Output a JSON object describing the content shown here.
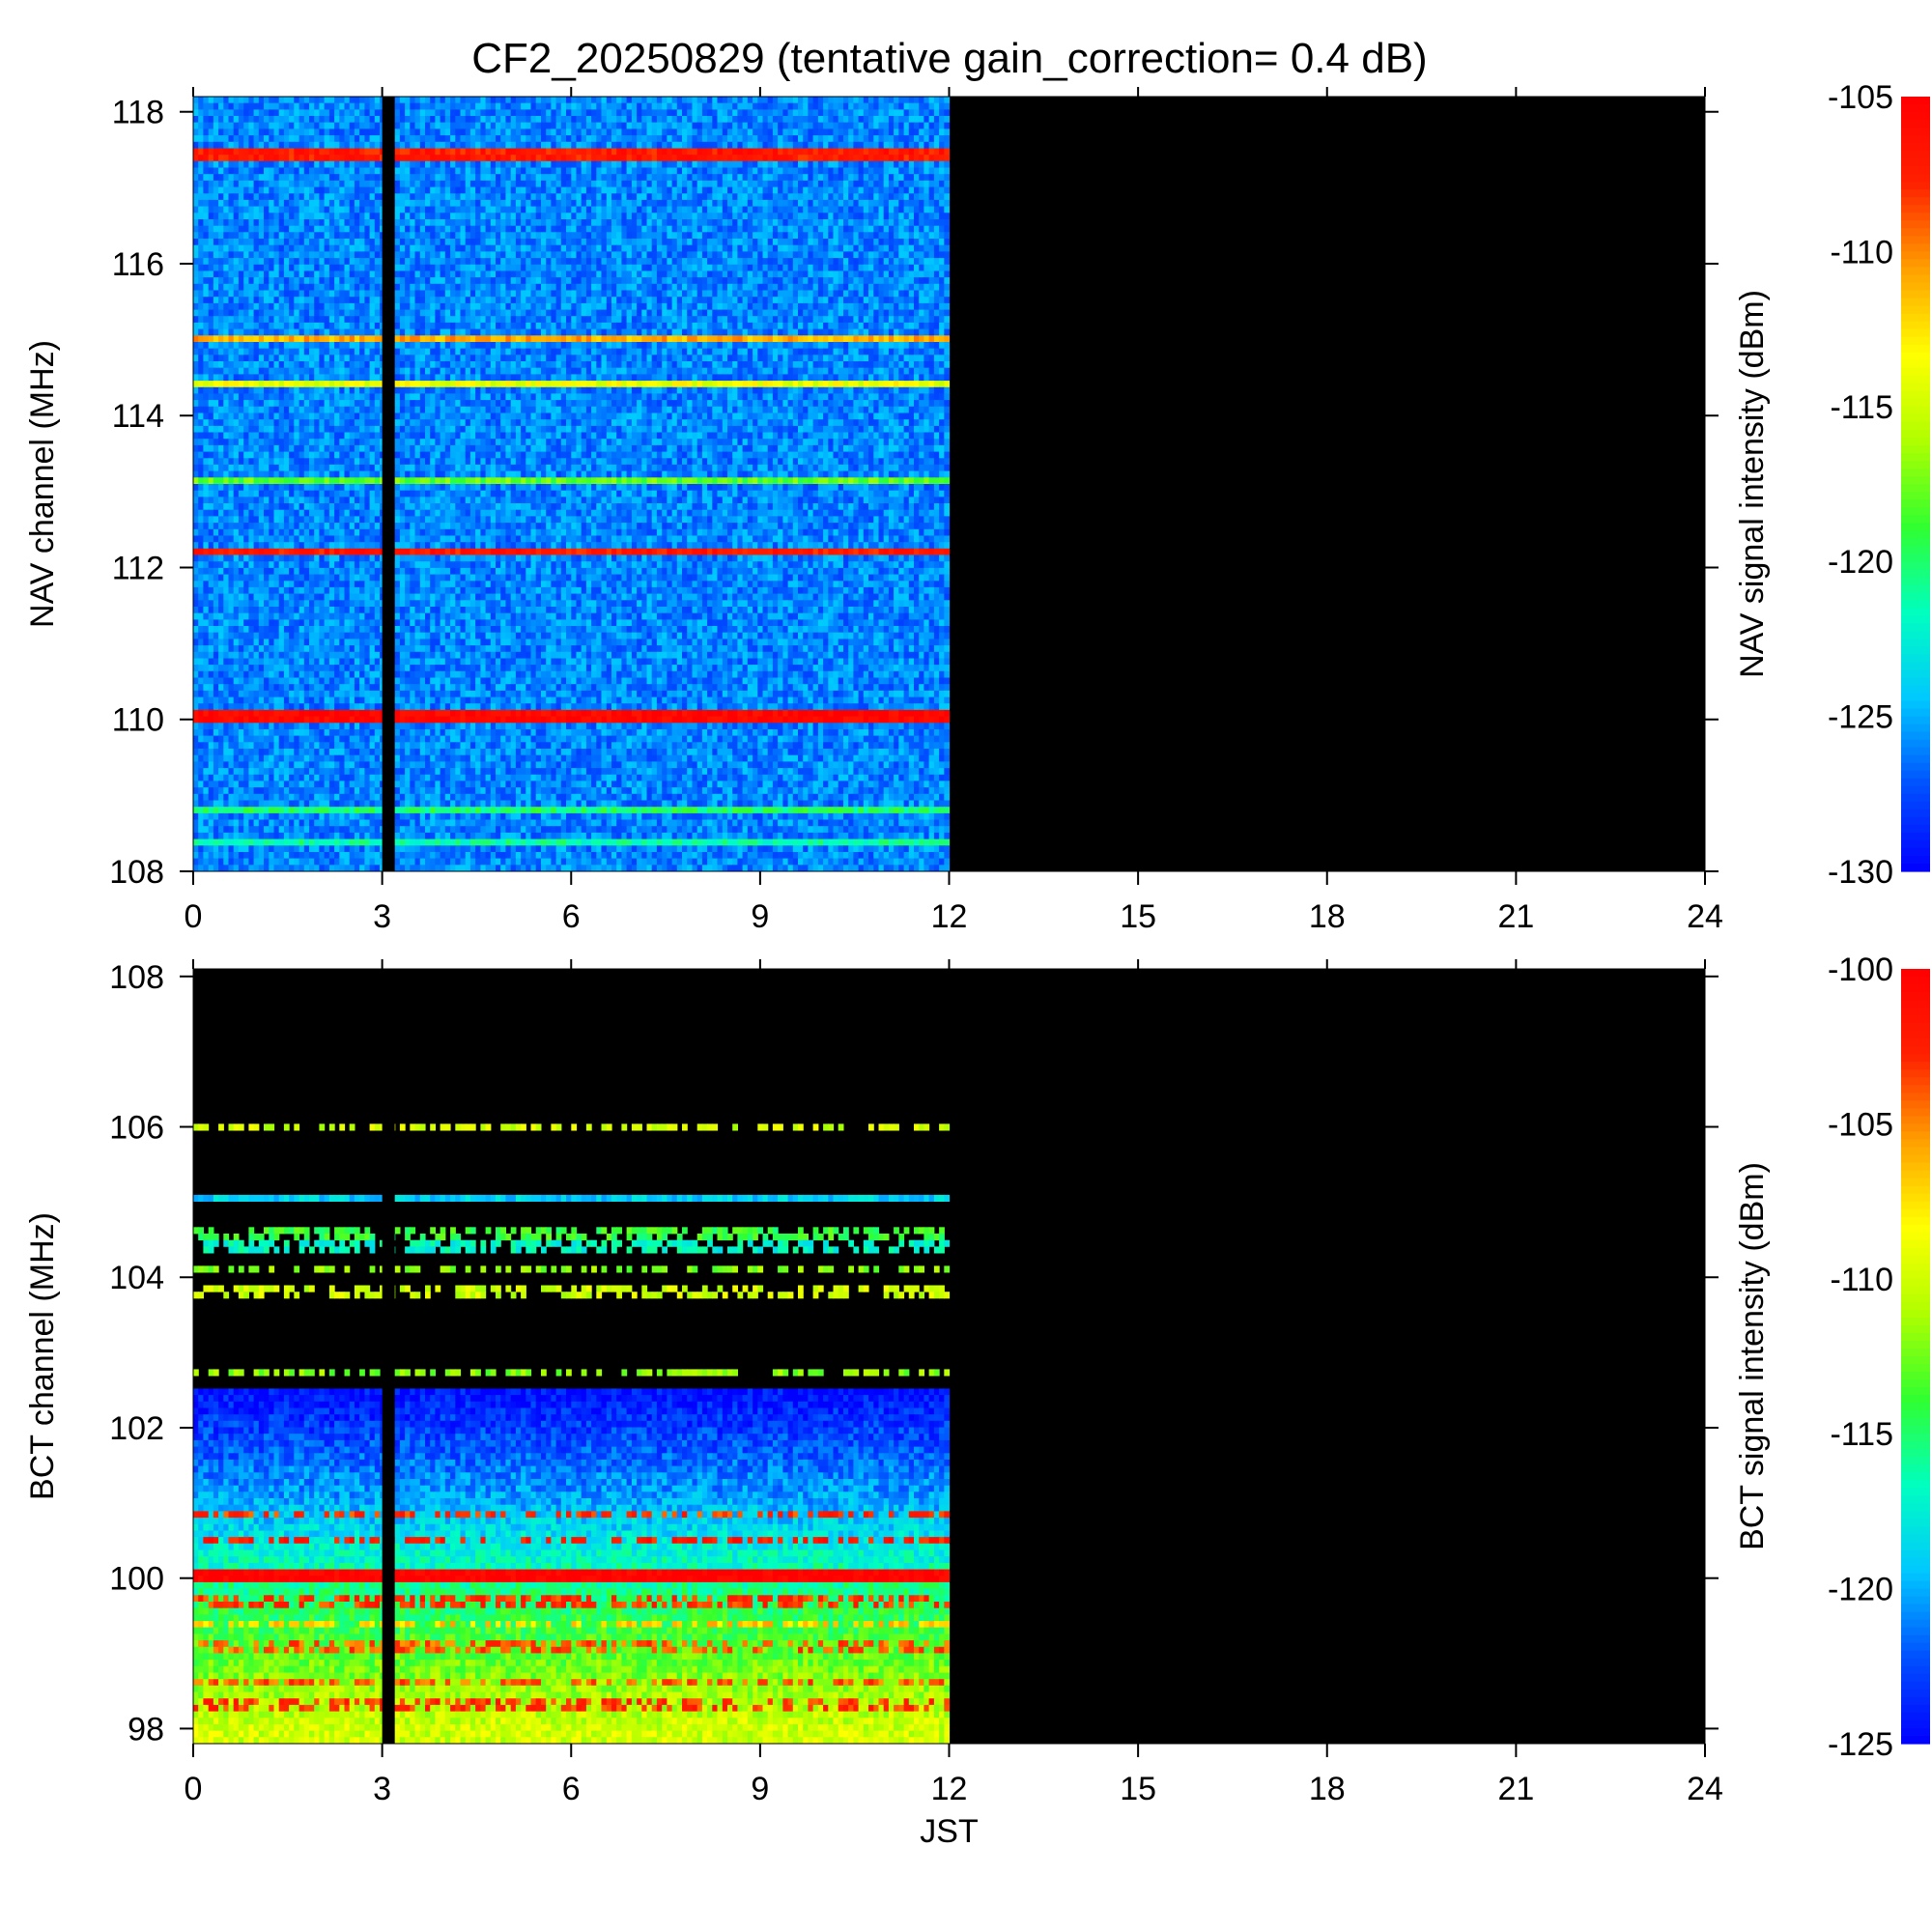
{
  "title": "CF2_20250829 (tentative gain_correction=  0.4 dB)",
  "colormap": [
    "#0000ff",
    "#0050ff",
    "#00c8ff",
    "#00ffc0",
    "#30ff30",
    "#b0ff00",
    "#ffff00",
    "#ffa000",
    "#ff2000",
    "#ff0000"
  ],
  "chart_data": [
    {
      "type": "heatmap",
      "name": "NAV",
      "xlabel": "",
      "ylabel": "NAV channel (MHz)",
      "colorbar_label": "NAV signal intensity (dBm)",
      "xlim": [
        0,
        24
      ],
      "ylim": [
        108,
        118.2
      ],
      "xticks": [
        "0",
        "3",
        "6",
        "9",
        "12",
        "15",
        "18",
        "21",
        "24"
      ],
      "yticks": [
        "108",
        "110",
        "112",
        "114",
        "116",
        "118"
      ],
      "clim": [
        -130,
        -105
      ],
      "cticks": [
        "-105",
        "-110",
        "-115",
        "-120",
        "-125",
        "-130"
      ],
      "data_hours": [
        0,
        12
      ],
      "gaps_hours": [
        [
          3.0,
          3.2
        ]
      ],
      "background_dbm": -126,
      "strong_channels": [
        {
          "mhz": 117.45,
          "dbm": -107
        },
        {
          "mhz": 115.0,
          "dbm": -111
        },
        {
          "mhz": 114.4,
          "dbm": -114
        },
        {
          "mhz": 113.15,
          "dbm": -118
        },
        {
          "mhz": 112.2,
          "dbm": -107
        },
        {
          "mhz": 110.05,
          "dbm": -105.5
        },
        {
          "mhz": 108.8,
          "dbm": -120
        },
        {
          "mhz": 108.4,
          "dbm": -121
        }
      ]
    },
    {
      "type": "heatmap",
      "name": "BCT",
      "xlabel": "JST",
      "ylabel": "BCT channel (MHz)",
      "colorbar_label": "BCT signal intensity (dBm)",
      "xlim": [
        0,
        24
      ],
      "ylim": [
        97.8,
        108.1
      ],
      "xticks": [
        "0",
        "3",
        "6",
        "9",
        "12",
        "15",
        "18",
        "21",
        "24"
      ],
      "yticks": [
        "98",
        "100",
        "102",
        "104",
        "106",
        "108"
      ],
      "clim": [
        -125,
        -100
      ],
      "cticks": [
        "-100",
        "-105",
        "-110",
        "-115",
        "-120",
        "-125"
      ],
      "data_hours": [
        0,
        12
      ],
      "gaps_hours": [
        [
          3.0,
          3.2
        ]
      ],
      "gradient_dbm": [
        {
          "mhz": 102.5,
          "dbm": -124.5
        },
        {
          "mhz": 101.0,
          "dbm": -120
        },
        {
          "mhz": 100.0,
          "dbm": -116
        },
        {
          "mhz": 98.0,
          "dbm": -110
        }
      ],
      "strong_channels": [
        {
          "mhz": 106.0,
          "dbm": -110,
          "sparse": true
        },
        {
          "mhz": 105.05,
          "dbm": -119
        },
        {
          "mhz": 104.6,
          "dbm": -114,
          "sparse": true
        },
        {
          "mhz": 104.4,
          "dbm": -117,
          "sparse": true
        },
        {
          "mhz": 104.1,
          "dbm": -112,
          "sparse": true
        },
        {
          "mhz": 103.8,
          "dbm": -110,
          "sparse": true
        },
        {
          "mhz": 102.75,
          "dbm": -112,
          "sparse": true
        },
        {
          "mhz": 100.85,
          "dbm": -103,
          "sparse": true
        },
        {
          "mhz": 100.5,
          "dbm": -102,
          "sparse": true
        },
        {
          "mhz": 100.05,
          "dbm": -100
        },
        {
          "mhz": 99.7,
          "dbm": -103,
          "sparse": true
        },
        {
          "mhz": 99.4,
          "dbm": -107,
          "sparse": true
        },
        {
          "mhz": 99.1,
          "dbm": -104,
          "sparse": true
        },
        {
          "mhz": 98.6,
          "dbm": -104,
          "sparse": true
        },
        {
          "mhz": 98.3,
          "dbm": -103,
          "sparse": true
        }
      ]
    }
  ]
}
